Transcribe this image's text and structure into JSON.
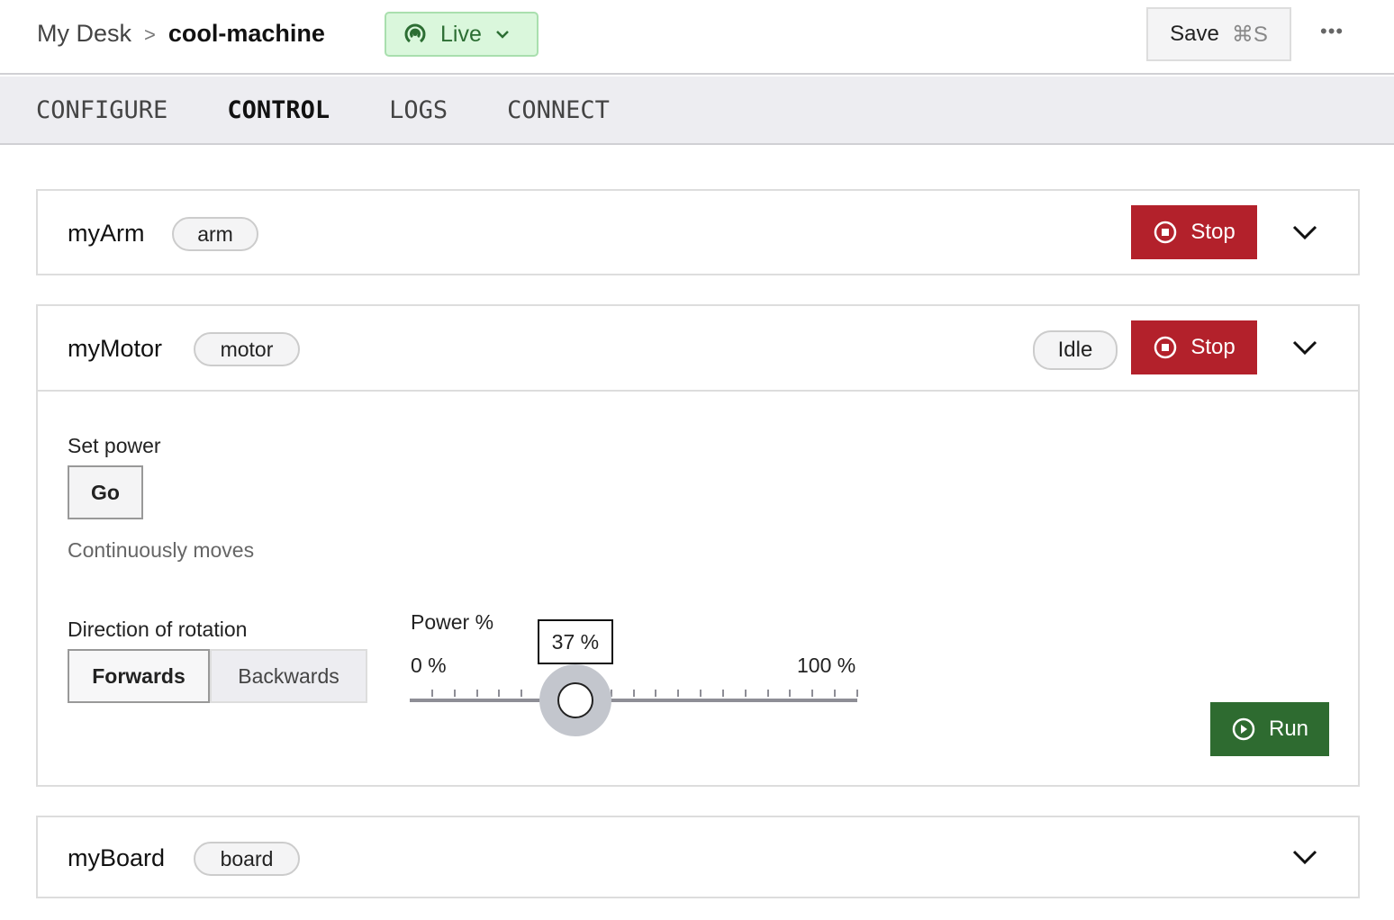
{
  "header": {
    "breadcrumb_parent": "My Desk",
    "breadcrumb_current": "cool-machine",
    "status": "Live",
    "save_label": "Save",
    "save_shortcut": "⌘S",
    "more": "•••"
  },
  "tabs": [
    {
      "label": "CONFIGURE"
    },
    {
      "label": "CONTROL",
      "active": true
    },
    {
      "label": "LOGS"
    },
    {
      "label": "CONNECT"
    }
  ],
  "cards": {
    "arm": {
      "name": "myArm",
      "type": "arm",
      "stop": "Stop"
    },
    "motor": {
      "name": "myMotor",
      "type": "motor",
      "state": "Idle",
      "stop": "Stop",
      "set_power": "Set power",
      "go": "Go",
      "go_desc": "Continuously moves",
      "direction_label": "Direction of rotation",
      "directions": [
        "Forwards",
        "Backwards"
      ],
      "selected_direction": "Forwards",
      "power_label": "Power %",
      "min_label": "0 %",
      "max_label": "100 %",
      "value": 37,
      "value_label": "37 %",
      "run": "Run"
    },
    "board": {
      "name": "myBoard",
      "type": "board"
    }
  },
  "colors": {
    "stop": "#b3212b",
    "run": "#2e6b30",
    "live_bg": "#daf7dc"
  }
}
